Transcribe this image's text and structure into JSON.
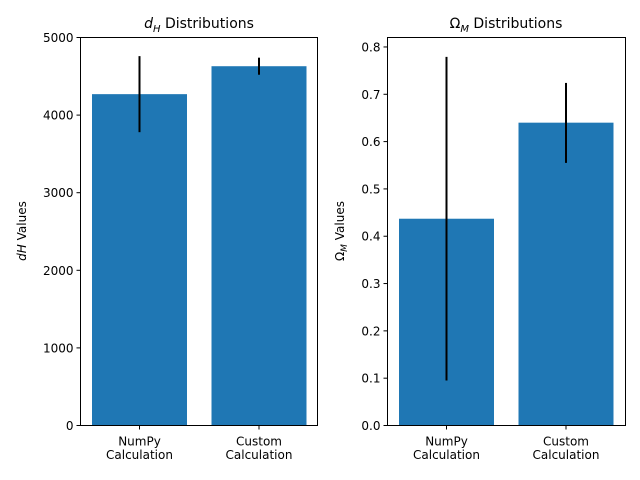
{
  "chart_data": [
    {
      "type": "bar",
      "title_main": "d",
      "title_sub": "H",
      "title_rest": " Distributions",
      "ylabel_main": "dH",
      "ylabel_rest": " Values",
      "categories": [
        [
          "NumPy",
          "Calculation"
        ],
        [
          "Custom",
          "Calculation"
        ]
      ],
      "values": [
        4270,
        4630
      ],
      "errors": [
        {
          "low": 3780,
          "high": 4760
        },
        {
          "low": 4520,
          "high": 4740
        }
      ],
      "ylim": [
        0,
        5000
      ],
      "yticks": [
        0,
        1000,
        2000,
        3000,
        4000,
        5000
      ],
      "ytick_labels": [
        "0",
        "1000",
        "2000",
        "3000",
        "4000",
        "5000"
      ],
      "grid": false,
      "bar_color": "#1f77b4",
      "error_color": "#000000"
    },
    {
      "type": "bar",
      "title_main": "Ω",
      "title_sub": "M",
      "title_rest": " Distributions",
      "ylabel_main": "Ω",
      "ylabel_sub": "M",
      "ylabel_rest": " Values",
      "categories": [
        [
          "NumPy",
          "Calculation"
        ],
        [
          "Custom",
          "Calculation"
        ]
      ],
      "values": [
        0.437,
        0.64
      ],
      "errors": [
        {
          "low": 0.095,
          "high": 0.779
        },
        {
          "low": 0.555,
          "high": 0.724
        }
      ],
      "ylim": [
        0,
        0.82
      ],
      "yticks": [
        0,
        0.1,
        0.2,
        0.3,
        0.4,
        0.5,
        0.6,
        0.7,
        0.8
      ],
      "ytick_labels": [
        "0.0",
        "0.1",
        "0.2",
        "0.3",
        "0.4",
        "0.5",
        "0.6",
        "0.7",
        "0.8"
      ],
      "grid": false,
      "bar_color": "#1f77b4",
      "error_color": "#000000"
    }
  ]
}
